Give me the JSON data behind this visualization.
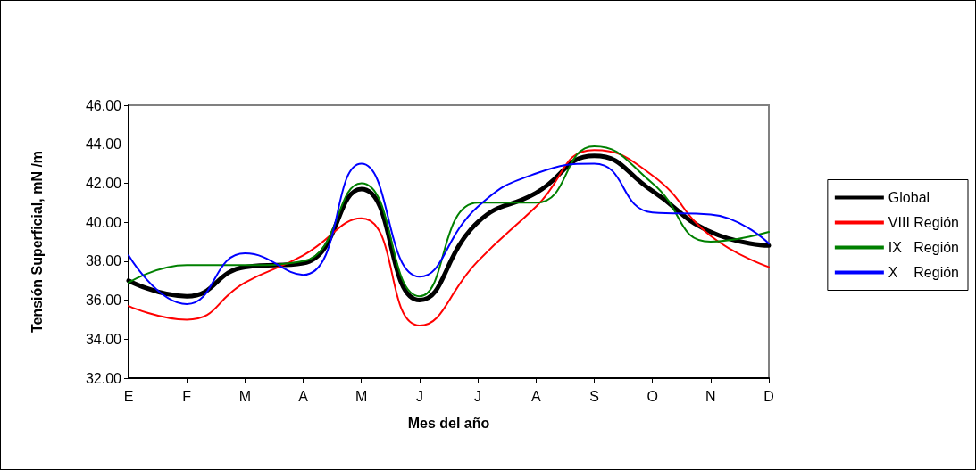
{
  "chart_data": {
    "type": "line",
    "xlabel": "Mes del año",
    "ylabel": "Tensión Superficial, mN /m",
    "categories": [
      "E",
      "F",
      "M",
      "A",
      "M",
      "J",
      "J",
      "A",
      "S",
      "O",
      "N",
      "D"
    ],
    "series": [
      {
        "name": "Global",
        "color": "#000000",
        "values": [
          37.0,
          36.2,
          37.7,
          37.9,
          41.7,
          36.0,
          40.0,
          41.5,
          43.4,
          41.6,
          39.5,
          38.8
        ]
      },
      {
        "name": "VIII Región",
        "color": "#ff0000",
        "values": [
          35.7,
          35.0,
          36.9,
          38.3,
          40.2,
          34.7,
          38.0,
          40.8,
          43.7,
          42.4,
          39.3,
          37.7
        ]
      },
      {
        "name": "IX   Región",
        "color": "#008000",
        "values": [
          36.9,
          37.8,
          37.8,
          38.0,
          42.0,
          36.2,
          41.0,
          41.0,
          43.9,
          42.0,
          39.0,
          39.5
        ]
      },
      {
        "name": "X    Región",
        "color": "#0000ff",
        "values": [
          38.3,
          35.8,
          38.4,
          37.3,
          43.0,
          37.2,
          40.8,
          42.5,
          43.0,
          40.5,
          40.4,
          38.9
        ]
      }
    ],
    "ylim": [
      32,
      46
    ],
    "yticks": [
      {
        "value": 32,
        "label": "32.00"
      },
      {
        "value": 34,
        "label": "34.00"
      },
      {
        "value": 36,
        "label": "36.00"
      },
      {
        "value": 38,
        "label": "38.00"
      },
      {
        "value": 40,
        "label": "40.00"
      },
      {
        "value": 42,
        "label": "42.00"
      },
      {
        "value": 44,
        "label": "44.00"
      },
      {
        "value": 46,
        "label": "46.00"
      }
    ],
    "grid": false,
    "legend": "right",
    "marker": "none",
    "line_style": "solid"
  }
}
